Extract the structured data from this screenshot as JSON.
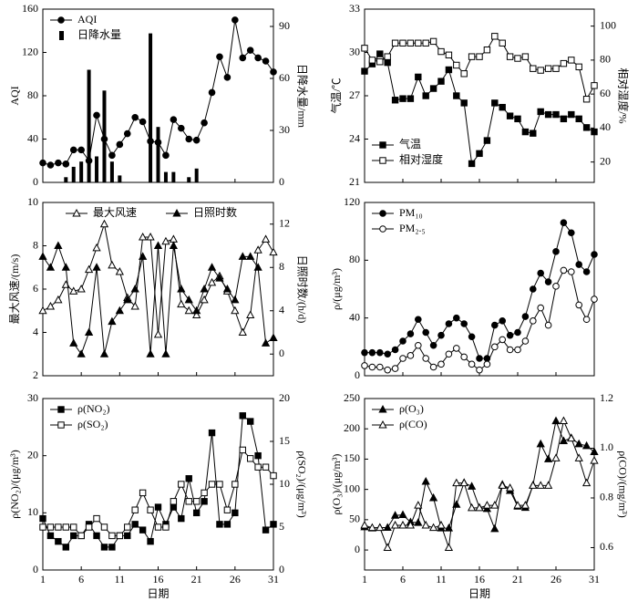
{
  "chart_data": [
    {
      "type": "line",
      "legend": "upper left",
      "ylabel": "AQI",
      "y2label": "日降水量/mm",
      "x": [
        1,
        2,
        3,
        4,
        5,
        6,
        7,
        8,
        9,
        10,
        11,
        12,
        13,
        14,
        15,
        16,
        17,
        18,
        19,
        20,
        21,
        22,
        23,
        24,
        25,
        26,
        27,
        28,
        29,
        30,
        31
      ],
      "xlim": [
        1,
        31
      ],
      "xticks": [
        1,
        6,
        11,
        16,
        21,
        26,
        31
      ],
      "ylim": [
        0,
        160
      ],
      "yticks": [
        0,
        40,
        80,
        120,
        160
      ],
      "y2lim": [
        0,
        100
      ],
      "y2ticks": [
        0,
        30,
        60,
        90
      ],
      "series": [
        {
          "name": "AQI",
          "color": "#000000",
          "marker": "circle",
          "filled": true,
          "values": [
            18,
            16,
            18,
            17,
            30,
            30,
            20,
            62,
            40,
            25,
            35,
            45,
            60,
            56,
            38,
            37,
            25,
            58,
            50,
            40,
            39,
            55,
            83,
            116,
            97,
            150,
            115,
            122,
            115,
            112,
            102
          ]
        },
        {
          "name": "日降水量",
          "color": "#000000",
          "kind": "bar",
          "axis": "y2",
          "values": [
            0,
            0,
            0,
            3,
            9,
            12,
            65,
            15,
            53,
            12,
            4,
            0,
            0,
            0,
            86,
            32,
            6,
            6,
            0,
            3,
            8,
            0,
            0,
            0,
            0,
            0,
            0,
            0,
            0,
            0,
            0
          ]
        }
      ]
    },
    {
      "type": "line",
      "legend": "lower left",
      "ylabel": "气温/℃",
      "y2label": "相对湿度/%",
      "x": [
        1,
        2,
        3,
        4,
        5,
        6,
        7,
        8,
        9,
        10,
        11,
        12,
        13,
        14,
        15,
        16,
        17,
        18,
        19,
        20,
        21,
        22,
        23,
        24,
        25,
        26,
        27,
        28,
        29,
        30,
        31
      ],
      "xlim": [
        1,
        31
      ],
      "xticks": [
        1,
        6,
        11,
        16,
        21,
        26,
        31
      ],
      "ylim": [
        21,
        33
      ],
      "yticks": [
        21,
        24,
        27,
        30,
        33
      ],
      "y2lim": [
        8,
        110
      ],
      "y2ticks": [
        20,
        40,
        60,
        80,
        100
      ],
      "series": [
        {
          "name": "气温",
          "color": "#000000",
          "marker": "square",
          "filled": true,
          "values": [
            28.7,
            29.2,
            29.9,
            29.3,
            26.7,
            26.8,
            26.8,
            28.3,
            27.0,
            27.5,
            28.0,
            28.8,
            27.0,
            26.5,
            22.3,
            23.0,
            23.9,
            26.5,
            26.2,
            25.6,
            25.4,
            24.5,
            24.4,
            25.9,
            25.7,
            25.7,
            25.4,
            25.7,
            25.4,
            24.8,
            24.5
          ]
        },
        {
          "name": "相对湿度",
          "color": "#000000",
          "marker": "square",
          "filled": false,
          "axis": "y2",
          "values": [
            87,
            80,
            79,
            82,
            90,
            90,
            90,
            90,
            90,
            91,
            85,
            83,
            77,
            72,
            82,
            82,
            86,
            94,
            90,
            82,
            81,
            82,
            75,
            74,
            75,
            75,
            78,
            80,
            76,
            57,
            65
          ]
        }
      ]
    },
    {
      "type": "line",
      "legend": "upper center",
      "ylabel": "最大风速/(m/s)",
      "y2label": "日照时数/(h/d)",
      "x": [
        1,
        2,
        3,
        4,
        5,
        6,
        7,
        8,
        9,
        10,
        11,
        12,
        13,
        14,
        15,
        16,
        17,
        18,
        19,
        20,
        21,
        22,
        23,
        24,
        25,
        26,
        27,
        28,
        29,
        30,
        31
      ],
      "xlim": [
        1,
        31
      ],
      "xticks": [
        1,
        6,
        11,
        16,
        21,
        26,
        31
      ],
      "ylim": [
        2,
        10
      ],
      "yticks": [
        2,
        4,
        6,
        8,
        10
      ],
      "y2lim": [
        -2,
        14
      ],
      "y2ticks": [
        0,
        4,
        8,
        12
      ],
      "series": [
        {
          "name": "最大风速",
          "color": "#000000",
          "marker": "triangle",
          "filled": false,
          "values": [
            5.0,
            5.2,
            5.5,
            6.2,
            5.9,
            6.0,
            6.9,
            7.9,
            9.0,
            7.1,
            6.8,
            5.6,
            5.2,
            8.4,
            8.4,
            3.9,
            8.2,
            8.3,
            5.3,
            5.0,
            4.8,
            5.5,
            6.3,
            6.6,
            5.9,
            5.0,
            4.0,
            4.8,
            7.8,
            8.3,
            7.7
          ]
        },
        {
          "name": "日照时数",
          "color": "#000000",
          "marker": "triangle",
          "filled": true,
          "axis": "y2",
          "values": [
            9,
            8,
            10,
            8,
            1,
            0,
            2,
            8,
            0,
            3,
            4,
            5,
            6,
            9,
            0,
            10,
            0,
            10,
            6,
            5,
            4,
            6,
            8,
            7,
            6,
            5,
            9,
            9,
            8,
            1,
            1.5
          ]
        }
      ]
    },
    {
      "type": "line",
      "legend": "upper left",
      "ylabel": "ρ/(μg/m³)",
      "x": [
        1,
        2,
        3,
        4,
        5,
        6,
        7,
        8,
        9,
        10,
        11,
        12,
        13,
        14,
        15,
        16,
        17,
        18,
        19,
        20,
        21,
        22,
        23,
        24,
        25,
        26,
        27,
        28,
        29,
        30,
        31
      ],
      "xlim": [
        1,
        31
      ],
      "xticks": [
        1,
        6,
        11,
        16,
        21,
        26,
        31
      ],
      "ylim": [
        0,
        120
      ],
      "yticks": [
        0,
        40,
        80,
        120
      ],
      "series": [
        {
          "name": "PM₁₀",
          "color": "#000000",
          "marker": "circle",
          "filled": true,
          "values": [
            16,
            16,
            16,
            15,
            18,
            24,
            29,
            39,
            30,
            21,
            28,
            36,
            40,
            36,
            27,
            12,
            12,
            35,
            38,
            28,
            30,
            41,
            60,
            71,
            65,
            86,
            106,
            99,
            77,
            72,
            84
          ]
        },
        {
          "name": "PM₂.₅",
          "color": "#000000",
          "marker": "circle",
          "filled": false,
          "values": [
            7,
            6,
            6,
            4,
            5,
            12,
            14,
            21,
            12,
            6,
            8,
            15,
            19,
            13,
            8,
            4,
            8,
            20,
            25,
            18,
            18,
            24,
            38,
            47,
            35,
            62,
            73,
            72,
            49,
            39,
            53
          ]
        }
      ]
    },
    {
      "type": "line",
      "legend": "upper left",
      "ylabel": "ρ(NO₂)/(μg/m³)",
      "y2label": "ρ(SO₂)/(μg/m³)",
      "xlabel": "日期",
      "x": [
        1,
        2,
        3,
        4,
        5,
        6,
        7,
        8,
        9,
        10,
        11,
        12,
        13,
        14,
        15,
        16,
        17,
        18,
        19,
        20,
        21,
        22,
        23,
        24,
        25,
        26,
        27,
        28,
        29,
        30,
        31
      ],
      "xlim": [
        1,
        31
      ],
      "xticks": [
        1,
        6,
        11,
        16,
        21,
        26,
        31
      ],
      "ylim": [
        0,
        30
      ],
      "yticks": [
        0,
        10,
        20,
        30
      ],
      "y2lim": [
        0,
        20
      ],
      "y2ticks": [
        0,
        5,
        10,
        15,
        20
      ],
      "series": [
        {
          "name": "ρ(NO₂)",
          "color": "#000000",
          "marker": "square",
          "filled": true,
          "values": [
            9,
            6,
            5,
            4,
            6,
            6,
            8,
            6,
            4,
            4,
            6,
            6,
            8,
            7,
            5,
            11,
            8,
            11,
            9,
            16,
            10,
            12,
            24,
            8,
            8,
            10,
            27,
            26,
            20,
            7,
            8
          ]
        },
        {
          "name": "ρ(SO₂)",
          "color": "#000000",
          "marker": "square",
          "filled": false,
          "axis": "y2",
          "values": [
            5,
            5,
            5,
            5,
            5,
            4,
            5,
            6,
            5,
            4,
            4,
            5,
            7,
            9,
            7,
            5,
            5,
            8,
            10,
            8,
            8,
            9,
            10,
            10,
            7,
            10,
            14,
            13,
            12,
            12,
            11
          ]
        }
      ]
    },
    {
      "type": "line",
      "legend": "upper left",
      "ylabel": "ρ(O₃)/(μg/m³)",
      "y2label": "ρ(CO)/(mg/m³)",
      "xlabel": "日期",
      "x": [
        1,
        2,
        3,
        4,
        5,
        6,
        7,
        8,
        9,
        10,
        11,
        12,
        13,
        14,
        15,
        16,
        17,
        18,
        19,
        20,
        21,
        22,
        23,
        24,
        25,
        26,
        27,
        28,
        29,
        30,
        31
      ],
      "xlim": [
        1,
        31
      ],
      "xticks": [
        1,
        6,
        11,
        16,
        21,
        26,
        31
      ],
      "ylim": [
        -33,
        250
      ],
      "yticks": [
        0,
        50,
        100,
        150,
        200,
        250
      ],
      "y2lim": [
        0.51,
        1.2
      ],
      "y2ticks": [
        {
          "value": 0.6,
          "label": "0.6"
        },
        {
          "value": 0.8,
          "label": "0.8"
        },
        {
          "value": 1.0,
          "label": "1.0"
        },
        {
          "value": 1.2,
          "label": "1.2"
        }
      ],
      "series": [
        {
          "name": "ρ(O₃)",
          "color": "#000000",
          "marker": "triangle",
          "filled": true,
          "values": [
            38,
            36,
            37,
            37,
            57,
            58,
            46,
            45,
            113,
            86,
            36,
            36,
            75,
            111,
            105,
            70,
            68,
            35,
            108,
            98,
            72,
            70,
            107,
            175,
            150,
            213,
            180,
            185,
            175,
            172,
            162
          ]
        },
        {
          "name": "ρ(CO)",
          "color": "#000000",
          "marker": "triangle",
          "filled": false,
          "axis": "y2",
          "values": [
            0.69,
            0.68,
            0.68,
            0.6,
            0.69,
            0.69,
            0.69,
            0.77,
            0.69,
            0.68,
            0.69,
            0.6,
            0.86,
            0.86,
            0.76,
            0.76,
            0.77,
            0.77,
            0.85,
            0.84,
            0.77,
            0.77,
            0.85,
            0.85,
            0.85,
            0.96,
            1.11,
            1.04,
            0.96,
            0.86,
            0.95
          ]
        }
      ]
    }
  ]
}
